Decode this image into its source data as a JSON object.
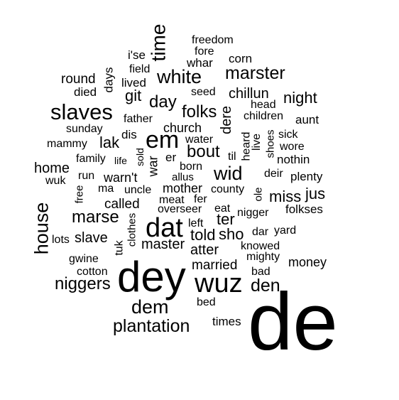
{
  "word_cloud": {
    "text_color": "#000000",
    "background_color": "#ffffff",
    "words": [
      "de",
      "dey",
      "wuz",
      "dat",
      "em",
      "slaves",
      "white",
      "time",
      "marster",
      "house",
      "plantation",
      "dem",
      "den",
      "niggers",
      "marse",
      "wid",
      "folks",
      "bout",
      "day",
      "slave",
      "ter",
      "sho",
      "master",
      "night",
      "told",
      "atter",
      "married",
      "miss",
      "jus",
      "git",
      "lak",
      "chillun",
      "dere",
      "church",
      "home",
      "called",
      "warn't",
      "war",
      "money",
      "mother",
      "folkses",
      "plenty",
      "nothin",
      "aunt",
      "round",
      "died",
      "lived",
      "days",
      "field",
      "i'se",
      "freedom",
      "fore",
      "whar",
      "corn",
      "seed",
      "head",
      "children",
      "father",
      "sunday",
      "dis",
      "mammy",
      "family",
      "life",
      "sold",
      "er",
      "water",
      "born",
      "til",
      "heard",
      "live",
      "shoes",
      "sick",
      "wore",
      "run",
      "allus",
      "deir",
      "wuk",
      "free",
      "ma",
      "uncle",
      "county",
      "ole",
      "meat",
      "fer",
      "overseer",
      "eat",
      "nigger",
      "dar",
      "yard",
      "left",
      "lots",
      "clothes",
      "tuk",
      "knowed",
      "gwine",
      "mighty",
      "cotton",
      "bad",
      "bed",
      "times"
    ]
  }
}
